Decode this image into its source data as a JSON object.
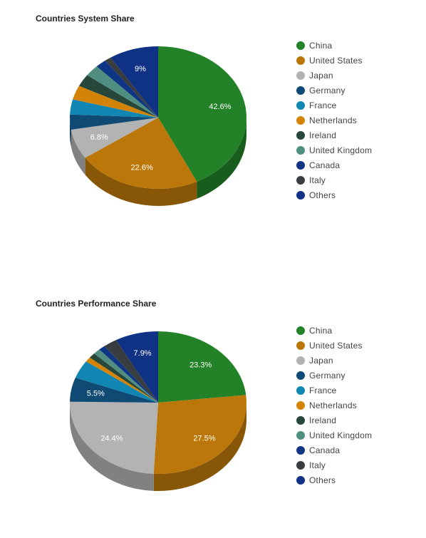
{
  "chart_data": [
    {
      "type": "pie",
      "title": "Countries System Share",
      "categories": [
        "China",
        "United States",
        "Japan",
        "Germany",
        "France",
        "Netherlands",
        "Ireland",
        "United Kingdom",
        "Canada",
        "Italy",
        "Others"
      ],
      "values": [
        42.6,
        22.6,
        6.8,
        3.4,
        3.4,
        3.2,
        2.8,
        2.6,
        2.0,
        1.2,
        9.0
      ],
      "labels": [
        "42.6%",
        "22.6%",
        "6.8%",
        "",
        "",
        "",
        "",
        "",
        "",
        "",
        "9%"
      ],
      "colors": [
        "#238127",
        "#bb7709",
        "#b3b3b3",
        "#0e4a74",
        "#1186b2",
        "#d38407",
        "#26473a",
        "#4f8e81",
        "#0f3685",
        "#3a3d40",
        "#0f3284"
      ],
      "legend_position": "right"
    },
    {
      "type": "pie",
      "title": "Countries Performance Share",
      "categories": [
        "China",
        "United States",
        "Japan",
        "Germany",
        "France",
        "Netherlands",
        "Ireland",
        "United Kingdom",
        "Canada",
        "Italy",
        "Others"
      ],
      "values": [
        23.3,
        27.5,
        24.4,
        5.5,
        4.1,
        1.1,
        1.2,
        1.3,
        1.2,
        2.5,
        7.9
      ],
      "labels": [
        "23.3%",
        "27.5%",
        "24.4%",
        "5.5%",
        "",
        "",
        "",
        "",
        "",
        "",
        "7.9%"
      ],
      "colors": [
        "#238127",
        "#bb7709",
        "#b3b3b3",
        "#0e4a74",
        "#1186b2",
        "#d38407",
        "#26473a",
        "#4f8e81",
        "#0f3685",
        "#3a3d40",
        "#0f3284"
      ],
      "legend_position": "right"
    }
  ]
}
